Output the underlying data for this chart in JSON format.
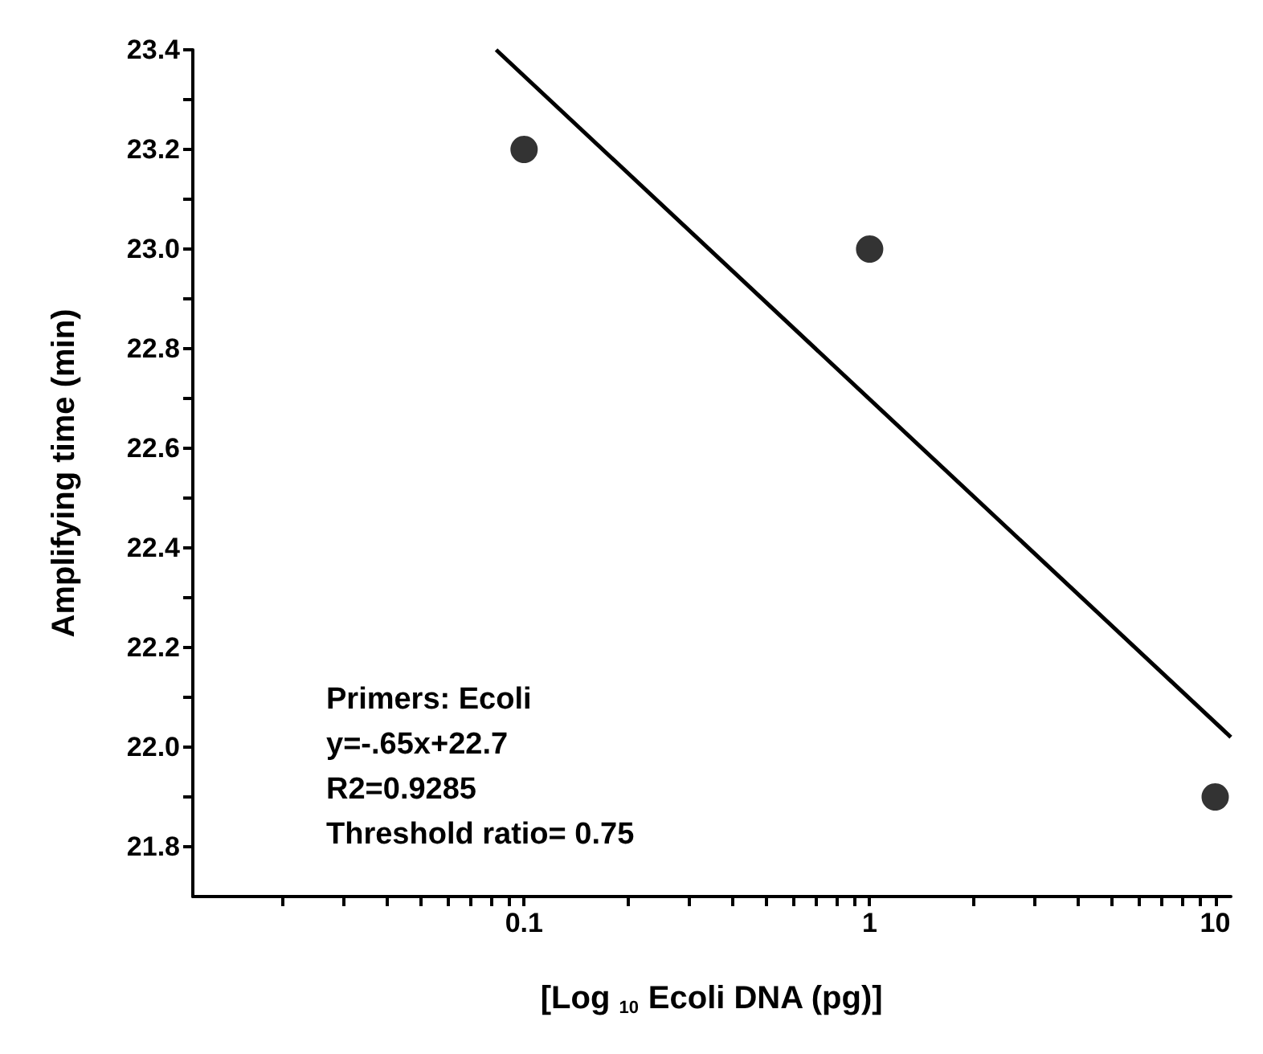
{
  "chart_data": {
    "type": "scatter",
    "xlabel": "[Log $_{10}$ Ecoli DNA (pg)]",
    "ylabel": "Amplifying time (min)",
    "log": "x",
    "xlim": [
      0.011,
      11.1
    ],
    "ylim": [
      21.7,
      23.4
    ],
    "xticks": [
      {
        "value": 0.02,
        "label": null
      },
      {
        "value": 0.03,
        "label": null
      },
      {
        "value": 0.04,
        "label": null
      },
      {
        "value": 0.05,
        "label": null
      },
      {
        "value": 0.06,
        "label": null
      },
      {
        "value": 0.07,
        "label": null
      },
      {
        "value": 0.08,
        "label": null
      },
      {
        "value": 0.09,
        "label": null
      },
      0.1,
      {
        "value": 0.2,
        "label": null
      },
      {
        "value": 0.3,
        "label": null
      },
      {
        "value": 0.4,
        "label": null
      },
      {
        "value": 0.5,
        "label": null
      },
      {
        "value": 0.6,
        "label": null
      },
      {
        "value": 0.7,
        "label": null
      },
      {
        "value": 0.8,
        "label": null
      },
      {
        "value": 0.9,
        "label": null
      },
      1,
      {
        "value": 2,
        "label": null
      },
      {
        "value": 3,
        "label": null
      },
      {
        "value": 4,
        "label": null
      },
      {
        "value": 5,
        "label": null
      },
      {
        "value": 6,
        "label": null
      },
      {
        "value": 7,
        "label": null
      },
      {
        "value": 8,
        "label": null
      },
      {
        "value": 9,
        "label": null
      },
      10
    ],
    "yticks": [
      21.8,
      {
        "value": 21.9,
        "label": null
      },
      {
        "value": 22.0,
        "label": "22.0"
      },
      {
        "value": 22.1,
        "label": null
      },
      22.2,
      {
        "value": 22.3,
        "label": null
      },
      22.4,
      {
        "value": 22.5,
        "label": null
      },
      22.6,
      {
        "value": 22.7,
        "label": null
      },
      22.8,
      {
        "value": 22.9,
        "label": null
      },
      {
        "value": 23.0,
        "label": "23.0"
      },
      {
        "value": 23.1,
        "label": null
      },
      23.2,
      {
        "value": 23.3,
        "label": null
      },
      23.4
    ],
    "grid": false,
    "marker": "circle",
    "series": [
      {
        "color": "#000000",
        "x": [
          0.1,
          1,
          10
        ],
        "values": [
          23.2,
          23.0,
          21.9
        ]
      },
      {
        "type": "line",
        "color": "#000000",
        "marker": "none",
        "line_style": "solid",
        "x": [
          0.083,
          11.1
        ],
        "values": [
          23.4,
          22.02
        ]
      }
    ],
    "annotations": [
      "Primers: Ecoli",
      "y=-.65x+22.7",
      "R2=0.9285",
      "Threshold ratio= 0.75"
    ]
  }
}
